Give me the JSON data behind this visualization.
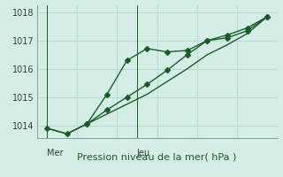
{
  "xlabel": "Pression niveau de la mer( hPa )",
  "bg_color": "#d4ede6",
  "grid_color": "#b8ddd5",
  "line_color": "#1a5c28",
  "ylim": [
    1013.55,
    1018.25
  ],
  "yticks": [
    1014,
    1015,
    1016,
    1017,
    1018
  ],
  "xlim": [
    0,
    12
  ],
  "x_day_labels": [
    [
      "Mer",
      0.5
    ],
    [
      "Jeu",
      5.0
    ]
  ],
  "x_day_vlines": [
    0.5,
    5.0
  ],
  "series1_x": [
    0.5,
    1.5,
    2.5,
    3.5,
    4.5,
    5.5,
    6.5,
    7.5,
    8.5,
    9.5,
    10.5,
    11.5
  ],
  "series1_y": [
    1013.9,
    1013.7,
    1014.05,
    1015.1,
    1016.3,
    1016.72,
    1016.6,
    1016.65,
    1017.0,
    1017.1,
    1017.35,
    1017.85
  ],
  "series2_x": [
    0.5,
    1.5,
    2.5,
    3.5,
    4.5,
    5.5,
    6.5,
    7.5,
    8.5,
    9.5,
    10.5,
    11.5
  ],
  "series2_y": [
    1013.9,
    1013.7,
    1014.05,
    1014.4,
    1014.75,
    1015.1,
    1015.55,
    1016.0,
    1016.5,
    1016.85,
    1017.25,
    1017.85
  ],
  "series3_x": [
    2.5,
    3.5,
    4.5,
    5.5,
    6.5,
    7.5,
    8.5,
    9.5,
    10.5,
    11.5
  ],
  "series3_y": [
    1014.05,
    1014.55,
    1015.0,
    1015.45,
    1015.95,
    1016.5,
    1017.0,
    1017.2,
    1017.45,
    1017.85
  ],
  "marker_size": 3.0,
  "linewidth": 1.0,
  "font_size_label": 8,
  "font_size_tick": 7,
  "font_size_xlabel_tick": 7
}
